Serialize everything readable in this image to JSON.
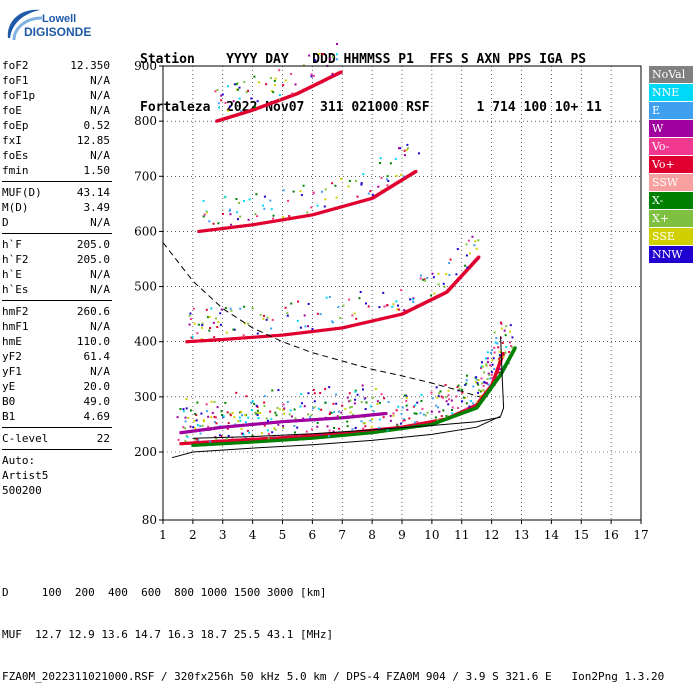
{
  "logo": {
    "brand": "Lowell",
    "product": "DIGISONDE"
  },
  "header": {
    "line1": "Station    YYYY DAY   DDD HHMMSS P1  FFS S AXN PPS IGA PS",
    "line2": "Fortaleza  2022 Nov07  311 021000 RSF      1 714 100 10+ 11"
  },
  "params": {
    "group1": [
      {
        "label": "foF2",
        "value": "12.350"
      },
      {
        "label": "foF1",
        "value": "N/A"
      },
      {
        "label": "foF1p",
        "value": "N/A"
      },
      {
        "label": "foE",
        "value": "N/A"
      },
      {
        "label": "foEp",
        "value": "0.52"
      },
      {
        "label": "fxI",
        "value": "12.85"
      },
      {
        "label": "foEs",
        "value": "N/A"
      },
      {
        "label": "fmin",
        "value": "1.50"
      }
    ],
    "group2": [
      {
        "label": "MUF(D)",
        "value": "43.14"
      },
      {
        "label": "M(D)",
        "value": "3.49"
      },
      {
        "label": "D",
        "value": "N/A"
      }
    ],
    "group3": [
      {
        "label": "h`F",
        "value": "205.0"
      },
      {
        "label": "h`F2",
        "value": "205.0"
      },
      {
        "label": "h`E",
        "value": "N/A"
      },
      {
        "label": "h`Es",
        "value": "N/A"
      }
    ],
    "group4": [
      {
        "label": "hmF2",
        "value": "260.6"
      },
      {
        "label": "hmF1",
        "value": "N/A"
      },
      {
        "label": "hmE",
        "value": "110.0"
      },
      {
        "label": "yF2",
        "value": "61.4"
      },
      {
        "label": "yF1",
        "value": "N/A"
      },
      {
        "label": "yE",
        "value": "20.0"
      },
      {
        "label": "B0",
        "value": "49.0"
      },
      {
        "label": "B1",
        "value": "4.69"
      }
    ],
    "group5": [
      {
        "label": "C-level",
        "value": "22"
      }
    ],
    "auto_lines": [
      "Auto:",
      "Artist5",
      "500200"
    ]
  },
  "legend": [
    {
      "label": "NoVal",
      "color": "#808080"
    },
    {
      "label": "NNE",
      "color": "#00d8f8"
    },
    {
      "label": "E",
      "color": "#40a0f0"
    },
    {
      "label": "W",
      "color": "#a000a0"
    },
    {
      "label": "Vo-",
      "color": "#f03890"
    },
    {
      "label": "Vo+",
      "color": "#e00030"
    },
    {
      "label": "SSW",
      "color": "#f8a0a0"
    },
    {
      "label": "X-",
      "color": "#008000"
    },
    {
      "label": "X+",
      "color": "#80c040"
    },
    {
      "label": "SSE",
      "color": "#d0d000"
    },
    {
      "label": "NNW",
      "color": "#2000d0"
    }
  ],
  "footer": {
    "line1": "D     100  200  400  600  800 1000 1500 3000 [km]",
    "line2": "MUF  12.7 12.9 13.6 14.7 16.3 18.7 25.5 43.1 [MHz]",
    "line3": "FZA0M_2022311021000.RSF / 320fx256h 50 kHz 5.0 km / DPS-4 FZA0M 904 / 3.9 S 321.6 E   Ion2Png 1.3.20"
  },
  "chart_data": {
    "type": "scatter",
    "x_ticks": [
      1,
      2,
      3,
      4,
      5,
      6,
      7,
      8,
      9,
      10,
      11,
      12,
      13,
      14,
      15,
      16,
      17
    ],
    "y_ticks": [
      80,
      200,
      300,
      400,
      500,
      600,
      700,
      800,
      900
    ],
    "xlim": [
      1,
      17
    ],
    "ylim": [
      80,
      900
    ],
    "axis_break_note": "bottom y tick 80 placed at axis floor",
    "series": [
      {
        "name": "Vo+",
        "color": "#e00030",
        "trace": [
          [
            1.6,
            215
          ],
          [
            3,
            220
          ],
          [
            5,
            226
          ],
          [
            7,
            234
          ],
          [
            9,
            245
          ],
          [
            10.5,
            260
          ],
          [
            11.5,
            285
          ],
          [
            12,
            320
          ],
          [
            12.4,
            380
          ]
        ]
      },
      {
        "name": "X-",
        "color": "#008000",
        "trace": [
          [
            2,
            212
          ],
          [
            4,
            218
          ],
          [
            6,
            225
          ],
          [
            8,
            235
          ],
          [
            10,
            250
          ],
          [
            11.5,
            280
          ],
          [
            12.3,
            340
          ],
          [
            12.8,
            390
          ]
        ]
      },
      {
        "name": "W",
        "color": "#a000a0",
        "trace": [
          [
            1.6,
            235
          ],
          [
            3,
            245
          ],
          [
            5,
            255
          ],
          [
            7,
            262
          ],
          [
            8.5,
            270
          ]
        ]
      },
      {
        "name": "Vo+ 2nd hop",
        "color": "#e00030",
        "trace": [
          [
            1.8,
            400
          ],
          [
            3,
            404
          ],
          [
            5,
            412
          ],
          [
            7,
            425
          ],
          [
            9,
            450
          ],
          [
            10.5,
            490
          ],
          [
            11.6,
            555
          ]
        ]
      },
      {
        "name": "Vo+ 3rd hop",
        "color": "#e00030",
        "trace": [
          [
            2.2,
            600
          ],
          [
            4,
            612
          ],
          [
            6,
            630
          ],
          [
            8,
            660
          ],
          [
            9.5,
            710
          ]
        ]
      },
      {
        "name": "Vo+ 4th hop",
        "color": "#e00030",
        "trace": [
          [
            2.8,
            800
          ],
          [
            4,
            820
          ],
          [
            5.5,
            850
          ],
          [
            7,
            890
          ]
        ]
      }
    ],
    "profile_solid": [
      [
        1.3,
        190
      ],
      [
        2,
        200
      ],
      [
        4,
        207
      ],
      [
        6,
        213
      ],
      [
        8,
        221
      ],
      [
        10,
        232
      ],
      [
        11.5,
        245
      ],
      [
        12.3,
        265
      ]
    ],
    "profile_solid_return": [
      [
        12.3,
        265
      ],
      [
        12.4,
        280
      ],
      [
        12.35,
        340
      ],
      [
        12.3,
        410
      ]
    ],
    "profile_inner": [
      [
        2,
        225
      ],
      [
        4,
        228
      ],
      [
        6,
        233
      ],
      [
        8,
        240
      ],
      [
        10,
        248
      ],
      [
        11.5,
        255
      ],
      [
        12.3,
        263
      ]
    ],
    "profile_dashed": [
      [
        1,
        580
      ],
      [
        2,
        510
      ],
      [
        3,
        460
      ],
      [
        4,
        425
      ],
      [
        5,
        400
      ],
      [
        6,
        380
      ],
      [
        7,
        365
      ],
      [
        8,
        350
      ],
      [
        9,
        338
      ],
      [
        10,
        325
      ],
      [
        11,
        310
      ],
      [
        11.6,
        300
      ]
    ]
  }
}
